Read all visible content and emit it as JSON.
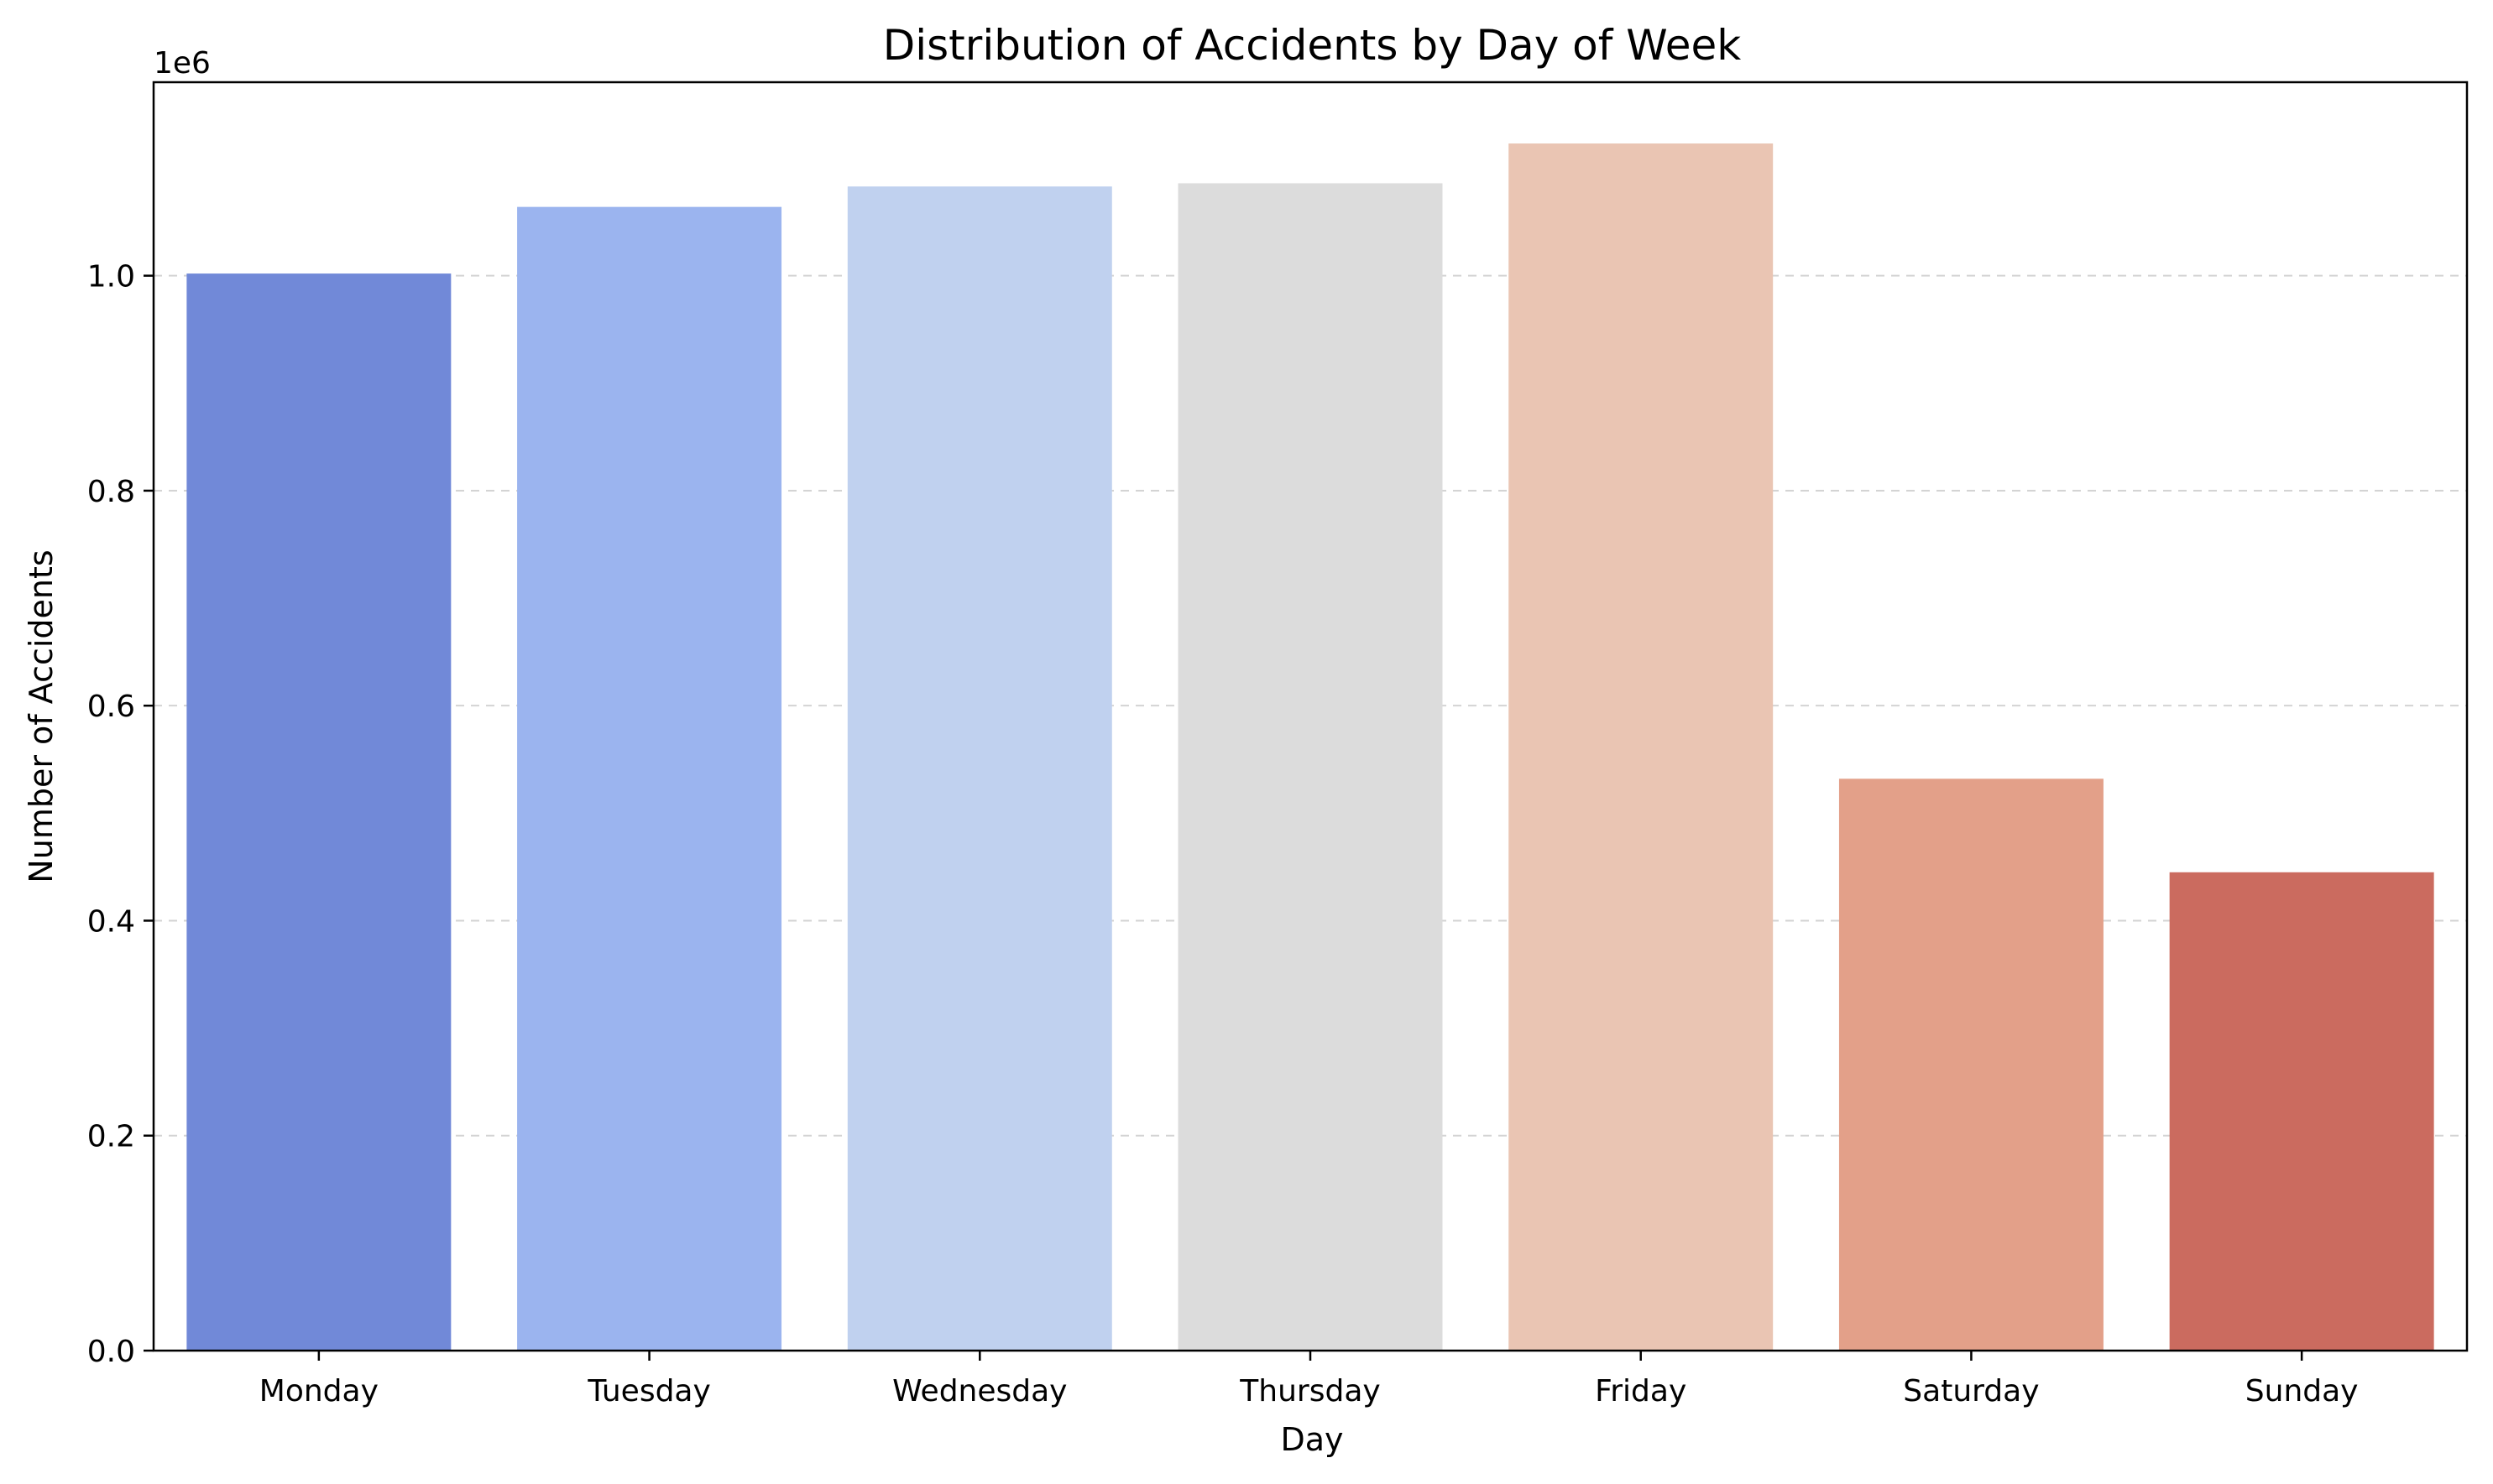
{
  "chart_data": {
    "type": "bar",
    "title": "Distribution of Accidents by Day of Week",
    "xlabel": "Day",
    "ylabel": "Number of Accidents",
    "offset_text": "1e6",
    "categories": [
      "Monday",
      "Tuesday",
      "Wednesday",
      "Thursday",
      "Friday",
      "Saturday",
      "Sunday"
    ],
    "values": [
      1002000,
      1064000,
      1083000,
      1086000,
      1123000,
      532000,
      445000
    ],
    "colors": [
      "#7189d8",
      "#9bb4ef",
      "#c0d1ef",
      "#dcdcdc",
      "#eac5b3",
      "#e3a089",
      "#cb6b5f"
    ],
    "ylim": [
      0,
      1180000
    ],
    "yticks": [
      0,
      200000,
      400000,
      600000,
      800000,
      1000000
    ],
    "ytick_labels": [
      "0.0",
      "0.2",
      "0.4",
      "0.6",
      "0.8",
      "1.0"
    ],
    "grid": "y, dashed",
    "legend": "none"
  }
}
